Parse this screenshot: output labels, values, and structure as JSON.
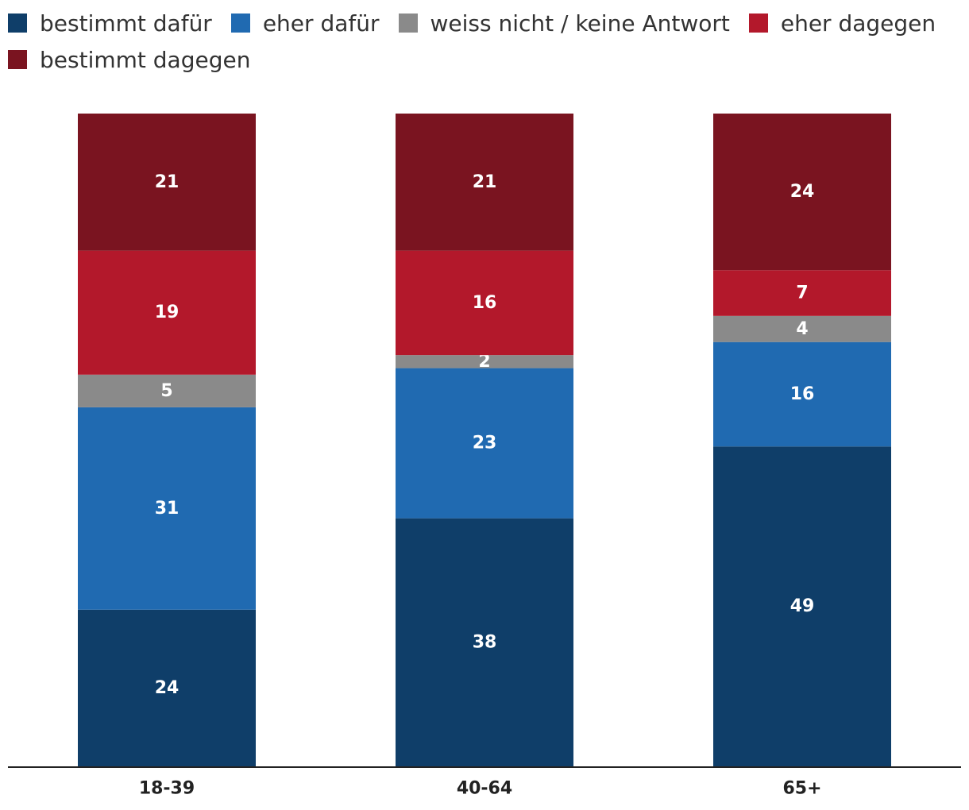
{
  "chart_data": {
    "type": "bar",
    "stacked": true,
    "categories": [
      "18-39",
      "40-64",
      "65+"
    ],
    "series": [
      {
        "name": "bestimmt dafür",
        "color": "#0f3e69",
        "values": [
          24,
          38,
          49
        ]
      },
      {
        "name": "eher dafür",
        "color": "#206ab1",
        "values": [
          31,
          23,
          16
        ]
      },
      {
        "name": "weiss nicht / keine Antwort",
        "color": "#8a8a8a",
        "values": [
          5,
          2,
          4
        ]
      },
      {
        "name": "eher dagegen",
        "color": "#b3182b",
        "values": [
          19,
          16,
          7
        ]
      },
      {
        "name": "bestimmt dagegen",
        "color": "#7a1420",
        "values": [
          21,
          21,
          24
        ]
      }
    ],
    "ylim": [
      0,
      100
    ],
    "legend_position": "top-left",
    "grid": false
  }
}
